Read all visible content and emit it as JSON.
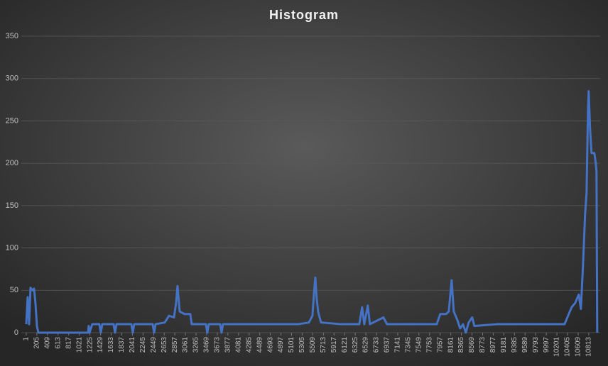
{
  "chart_data": {
    "type": "line",
    "title": "Histogram",
    "x": [
      1,
      28,
      56,
      83,
      124,
      151,
      178,
      206,
      233,
      1189,
      1202,
      1216,
      1270,
      1407,
      1434,
      1462,
      1680,
      1707,
      1735,
      2021,
      2049,
      2076,
      2431,
      2459,
      2486,
      2663,
      2745,
      2841,
      2881,
      2909,
      2950,
      3045,
      3154,
      3181,
      3454,
      3481,
      3509,
      3728,
      3755,
      3782,
      4683,
      5229,
      5434,
      5502,
      5530,
      5557,
      5584,
      5611,
      5666,
      6048,
      6321,
      6403,
      6457,
      6498,
      6566,
      6607,
      6867,
      6935,
      7686,
      7891,
      7959,
      8068,
      8123,
      8178,
      8218,
      8287,
      8341,
      8396,
      8450,
      8505,
      8573,
      8614,
      9051,
      9597,
      10143,
      10348,
      10416,
      10484,
      10552,
      10621,
      10662,
      10703,
      10743,
      10771,
      10798,
      10812,
      10839,
      10866,
      10921,
      10948,
      10962,
      10976
    ],
    "series": [
      {
        "color": "#4472c4",
        "values": [
          10,
          42,
          10,
          53,
          50,
          52,
          35,
          8,
          0,
          0,
          8,
          0,
          10,
          10,
          0,
          10,
          10,
          0,
          10,
          10,
          0,
          10,
          10,
          0,
          10,
          12,
          20,
          18,
          35,
          55,
          25,
          22,
          22,
          10,
          10,
          0,
          10,
          10,
          0,
          10,
          10,
          10,
          12,
          20,
          45,
          65,
          40,
          25,
          12,
          10,
          10,
          10,
          30,
          10,
          32,
          10,
          18,
          10,
          10,
          10,
          22,
          22,
          25,
          62,
          25,
          15,
          5,
          10,
          0,
          12,
          18,
          8,
          10,
          10,
          10,
          10,
          20,
          30,
          35,
          45,
          28,
          80,
          140,
          165,
          260,
          285,
          240,
          212,
          212,
          200,
          190,
          0
        ]
      }
    ],
    "xlim": [
      -94,
      11074
    ],
    "xticks": [
      1,
      205,
      409,
      613,
      817,
      1021,
      1225,
      1429,
      1633,
      1837,
      2041,
      2245,
      2449,
      2653,
      2857,
      3061,
      3265,
      3469,
      3673,
      3877,
      4081,
      4285,
      4489,
      4693,
      4897,
      5101,
      5305,
      5509,
      5713,
      5917,
      6121,
      6325,
      6529,
      6733,
      6937,
      7141,
      7345,
      7549,
      7753,
      7957,
      8161,
      8365,
      8569,
      8773,
      8977,
      9181,
      9385,
      9589,
      9793,
      9997,
      10201,
      10405,
      10609,
      10813
    ],
    "ylim": [
      0,
      350
    ],
    "yticks": [
      0,
      50,
      100,
      150,
      200,
      250,
      300,
      350
    ],
    "grid": true
  }
}
